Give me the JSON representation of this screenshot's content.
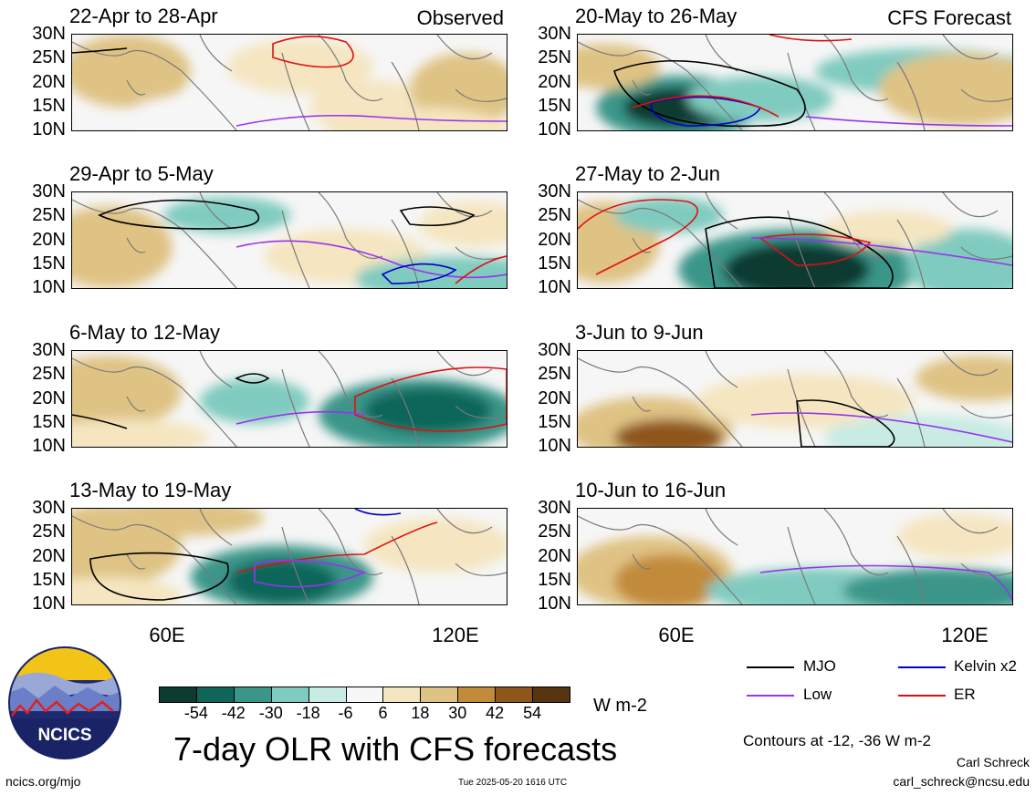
{
  "panels": [
    {
      "title": "22-Apr to 28-Apr",
      "tag": "Observed"
    },
    {
      "title": "20-May to 26-May",
      "tag": "CFS Forecast"
    },
    {
      "title": "29-Apr to 5-May",
      "tag": ""
    },
    {
      "title": "27-May to 2-Jun",
      "tag": ""
    },
    {
      "title": "6-May to 12-May",
      "tag": ""
    },
    {
      "title": "3-Jun to 9-Jun",
      "tag": ""
    },
    {
      "title": "13-May to 19-May",
      "tag": ""
    },
    {
      "title": "10-Jun to 16-Jun",
      "tag": ""
    }
  ],
  "lat_labels": [
    "30N",
    "25N",
    "20N",
    "15N",
    "10N"
  ],
  "lon_labels": [
    "60E",
    "120E"
  ],
  "colorbar": {
    "colors": [
      "#0c3b30",
      "#11665a",
      "#3a9689",
      "#80cbbf",
      "#c8ebe3",
      "#f7f7f7",
      "#f5e6c1",
      "#dfc384",
      "#c28b3a",
      "#8f571a",
      "#573510"
    ],
    "ticks": [
      "-54",
      "-42",
      "-30",
      "-18",
      "-6",
      "6",
      "18",
      "30",
      "42",
      "54"
    ],
    "unit": "W m-2"
  },
  "legend": [
    {
      "label": "MJO",
      "color": "#000000"
    },
    {
      "label": "Kelvin x2",
      "color": "#0000cc"
    },
    {
      "label": "Low",
      "color": "#9933ee"
    },
    {
      "label": "ER",
      "color": "#e01010"
    }
  ],
  "contours_note": "Contours at -12, -36 W m-2",
  "main_title": "7-day OLR with CFS forecasts",
  "logo_text": "NCICS",
  "footer_left": "ncics.org/mjo",
  "footer_center": "Tue 2025-05-20 1616 UTC",
  "author": "Carl Schreck",
  "email": "carl_schreck@ncsu.edu"
}
